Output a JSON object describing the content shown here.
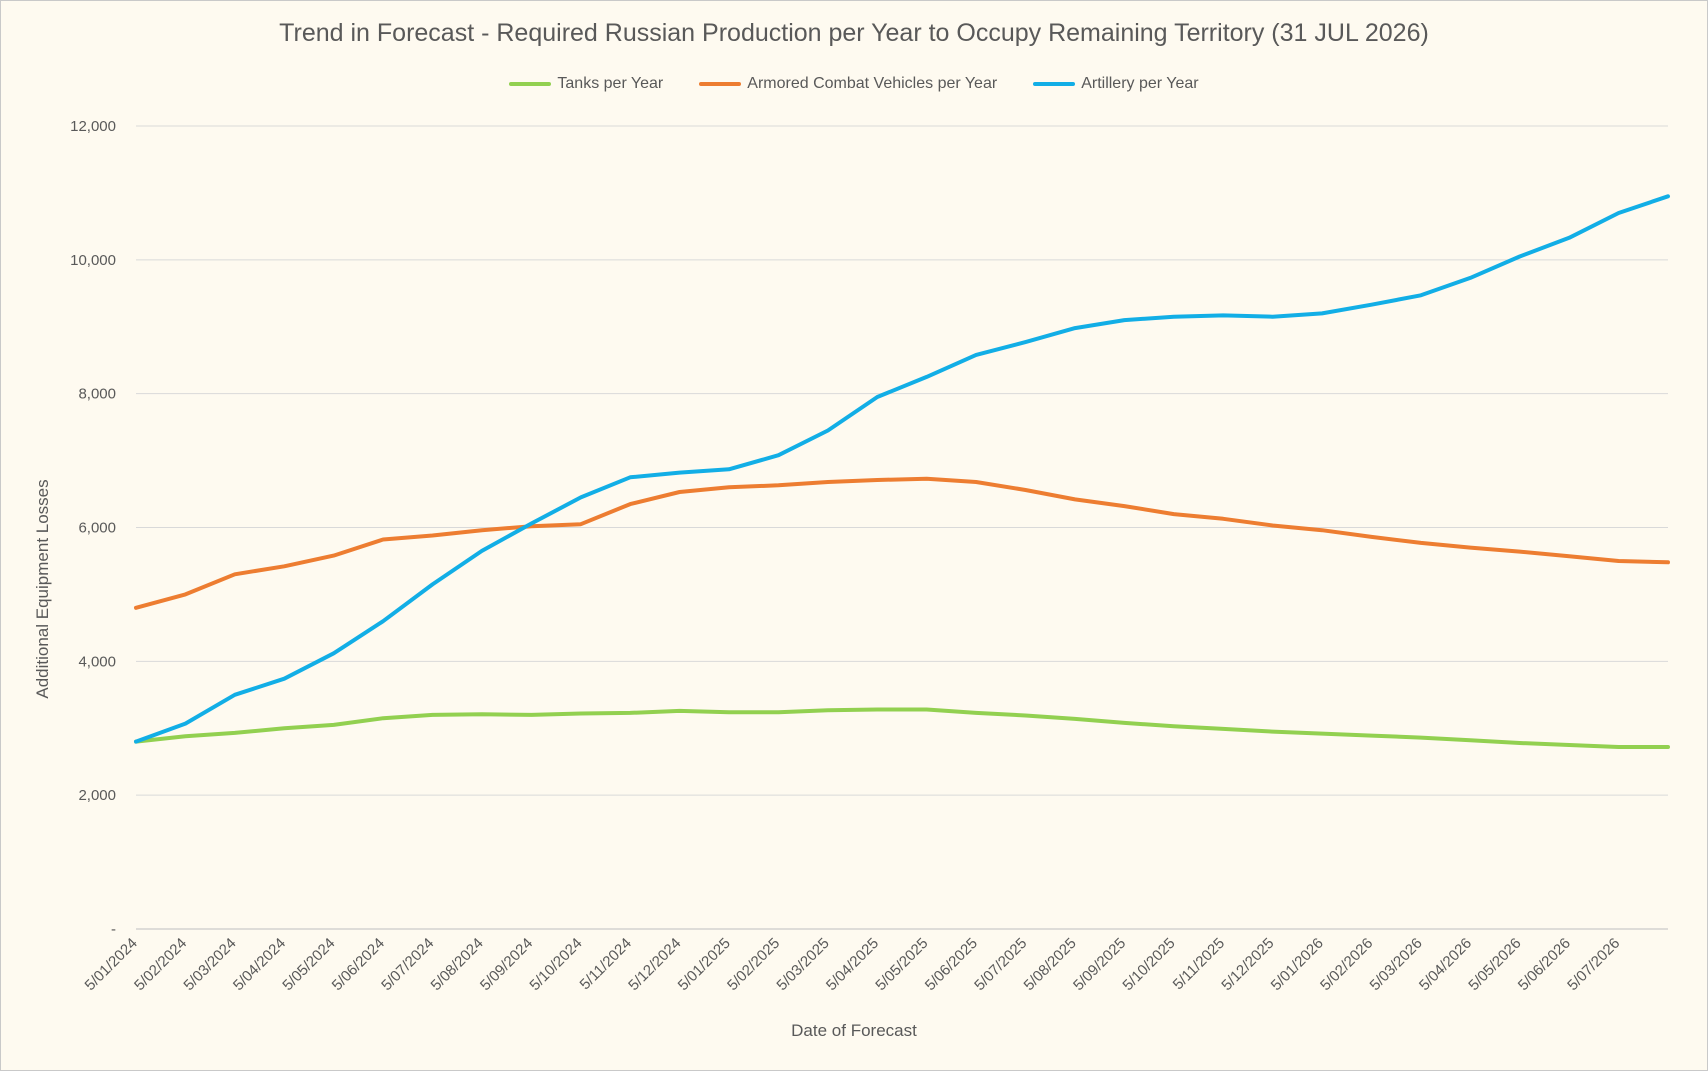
{
  "chart_data": {
    "type": "line",
    "title": "Trend in Forecast - Required Russian Production per Year to Occupy Remaining Territory (31 JUL 2026)",
    "xlabel": "Date of Forecast",
    "ylabel": "Additional Equipment Losses",
    "ylim": [
      0,
      12000
    ],
    "y_ticks": [
      "-",
      "2,000",
      "4,000",
      "6,000",
      "8,000",
      "10,000",
      "12,000"
    ],
    "x_ticks": [
      "5/01/2024",
      "5/02/2024",
      "5/03/2024",
      "5/04/2024",
      "5/05/2024",
      "5/06/2024",
      "5/07/2024",
      "5/08/2024",
      "5/09/2024",
      "5/10/2024",
      "5/11/2024",
      "5/12/2024",
      "5/01/2025",
      "5/02/2025",
      "5/03/2025",
      "5/04/2025",
      "5/05/2025",
      "5/06/2025",
      "5/07/2025",
      "5/08/2025",
      "5/09/2025",
      "5/10/2025",
      "5/11/2025",
      "5/12/2025",
      "5/01/2026",
      "5/02/2026",
      "5/03/2026",
      "5/04/2026",
      "5/05/2026",
      "5/06/2026",
      "5/07/2026"
    ],
    "grid": true,
    "legend_position": "top",
    "colors": {
      "background": "#fefaf0",
      "grid": "#d9d9d9",
      "text": "#595959"
    },
    "x": [
      "5/01/2024",
      "5/02/2024",
      "5/03/2024",
      "5/04/2024",
      "5/05/2024",
      "5/06/2024",
      "5/07/2024",
      "5/08/2024",
      "5/09/2024",
      "5/10/2024",
      "5/11/2024",
      "5/12/2024",
      "5/01/2025",
      "5/02/2025",
      "5/03/2025",
      "5/04/2025",
      "5/05/2025",
      "5/06/2025",
      "5/07/2025",
      "5/08/2025",
      "5/09/2025",
      "5/10/2025",
      "5/11/2025",
      "5/12/2025",
      "5/01/2026",
      "5/02/2026",
      "5/03/2026",
      "5/04/2026",
      "5/05/2026",
      "5/06/2026",
      "5/07/2026",
      "31/07/2026"
    ],
    "series": [
      {
        "name": "Tanks per Year",
        "color": "#92d050",
        "values": [
          2800,
          2880,
          2930,
          3000,
          3050,
          3150,
          3200,
          3210,
          3200,
          3220,
          3230,
          3260,
          3240,
          3240,
          3270,
          3280,
          3280,
          3230,
          3190,
          3140,
          3080,
          3030,
          2990,
          2950,
          2920,
          2890,
          2860,
          2820,
          2780,
          2750,
          2720,
          2720
        ]
      },
      {
        "name": "Armored Combat Vehicles per Year",
        "color": "#ed7d31",
        "values": [
          4800,
          5000,
          5300,
          5420,
          5580,
          5820,
          5880,
          5960,
          6020,
          6050,
          6350,
          6530,
          6600,
          6630,
          6680,
          6710,
          6730,
          6680,
          6560,
          6420,
          6320,
          6200,
          6130,
          6030,
          5960,
          5860,
          5770,
          5700,
          5640,
          5570,
          5500,
          5480
        ]
      },
      {
        "name": "Artillery per Year",
        "color": "#12aee6",
        "values": [
          2800,
          3070,
          3500,
          3740,
          4120,
          4600,
          5150,
          5650,
          6060,
          6450,
          6750,
          6820,
          6870,
          7080,
          7450,
          7950,
          8250,
          8580,
          8770,
          8980,
          9100,
          9150,
          9170,
          9150,
          9200,
          9330,
          9470,
          9730,
          10050,
          10330,
          10700,
          10950
        ]
      }
    ]
  }
}
